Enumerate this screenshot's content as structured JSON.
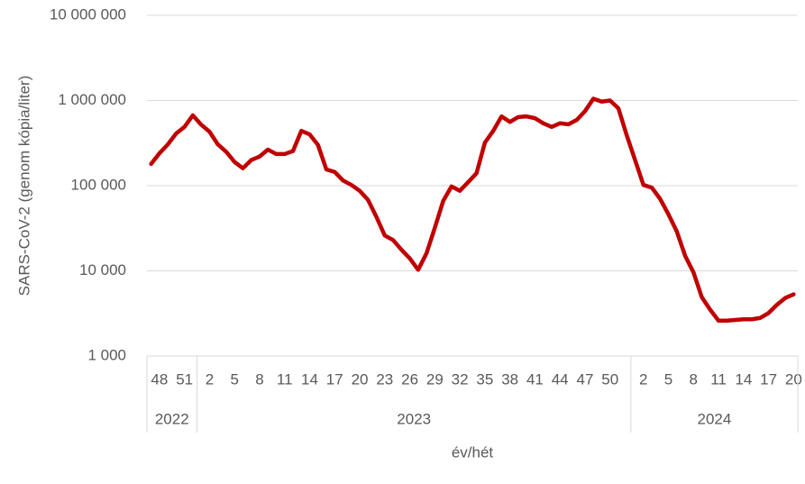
{
  "chart_data": {
    "type": "line",
    "y_label": "SARS-CoV-2 (genom kópia/liter)",
    "x_label": "év/hét",
    "log_scale": true,
    "grid": true,
    "color": "#c00000",
    "ylim": [
      1000,
      10000000
    ],
    "yticks": [
      {
        "value": 1000,
        "label": "1 000"
      },
      {
        "value": 10000,
        "label": "10 000"
      },
      {
        "value": 100000,
        "label": "100 000"
      },
      {
        "value": 1000000,
        "label": "1 000 000"
      },
      {
        "value": 10000000,
        "label": "10 000 000"
      }
    ],
    "x_groups": [
      {
        "label": "2022",
        "span": 6
      },
      {
        "label": "2023",
        "span": 52
      },
      {
        "label": "2024",
        "span": 20
      }
    ],
    "categories": [
      null,
      "48",
      null,
      null,
      "51",
      null,
      null,
      "2",
      null,
      null,
      "5",
      null,
      null,
      "8",
      null,
      null,
      "11",
      null,
      null,
      "14",
      null,
      null,
      "17",
      null,
      null,
      "20",
      null,
      null,
      "23",
      null,
      null,
      "26",
      null,
      null,
      "29",
      null,
      null,
      "32",
      null,
      null,
      "35",
      null,
      null,
      "38",
      null,
      null,
      "41",
      null,
      null,
      "44",
      null,
      null,
      "47",
      null,
      null,
      "50",
      null,
      null,
      null,
      "2",
      null,
      null,
      "5",
      null,
      null,
      "8",
      null,
      null,
      "11",
      null,
      null,
      "14",
      null,
      null,
      "17",
      null,
      null,
      "20"
    ],
    "values": [
      180000,
      240000,
      305000,
      410000,
      490000,
      670000,
      520000,
      430000,
      305000,
      250000,
      190000,
      160000,
      200000,
      220000,
      265000,
      235000,
      235000,
      255000,
      440000,
      400000,
      300000,
      155000,
      145000,
      115000,
      102000,
      87000,
      68000,
      43000,
      26000,
      23000,
      17700,
      14000,
      10300,
      16000,
      32000,
      66000,
      98000,
      87000,
      110000,
      140000,
      320000,
      440000,
      650000,
      560000,
      640000,
      650000,
      620000,
      540000,
      490000,
      540000,
      525000,
      590000,
      750000,
      1050000,
      970000,
      1000000,
      810000,
      390000,
      200000,
      102000,
      95000,
      70000,
      46000,
      29000,
      15000,
      9600,
      4900,
      3500,
      2600,
      2600,
      2650,
      2700,
      2700,
      2800,
      3200,
      4000,
      4800,
      5300
    ]
  }
}
